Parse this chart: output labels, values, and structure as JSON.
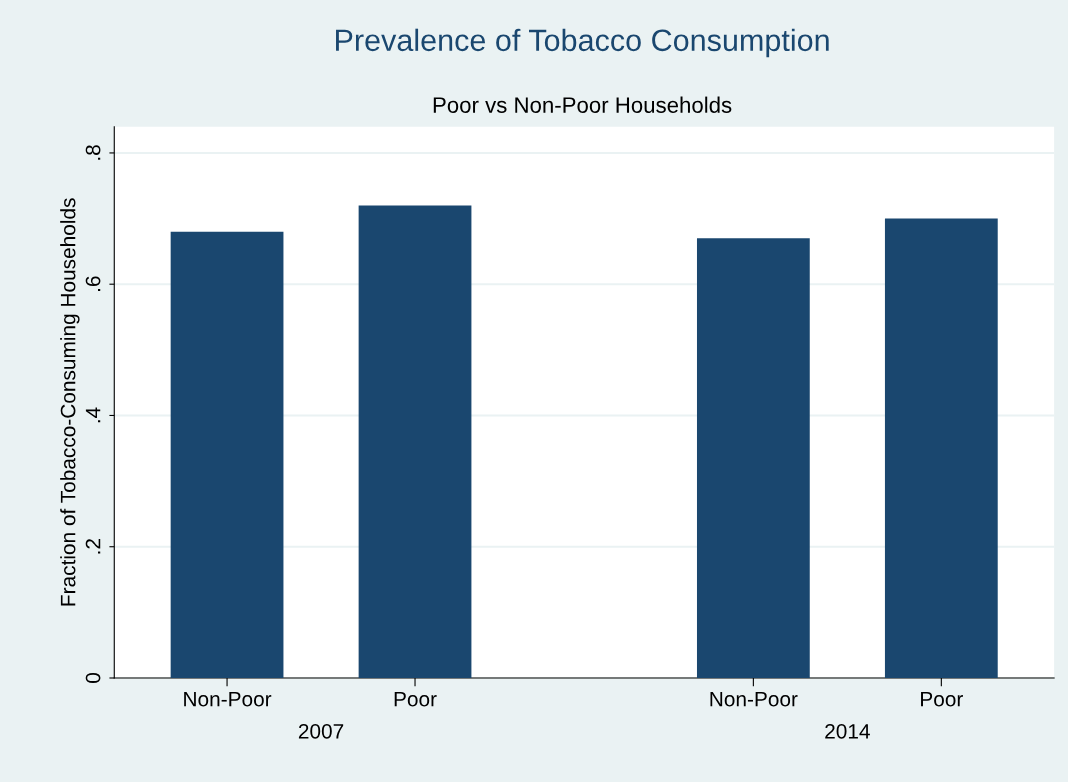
{
  "chart_data": {
    "type": "bar",
    "title": "Prevalence of Tobacco Consumption",
    "subtitle": "Poor vs Non-Poor Households",
    "ylabel": "Fraction of Tobacco-Consuming Households",
    "categories": [
      "Non-Poor",
      "Poor",
      "Non-Poor",
      "Poor"
    ],
    "values": [
      0.68,
      0.72,
      0.67,
      0.7
    ],
    "color": "#1a476f",
    "ylim": [
      0,
      0.84
    ],
    "yticks": [
      {
        "value": 0,
        "label": "0"
      },
      {
        "value": 0.2,
        "label": ".2"
      },
      {
        "value": 0.4,
        "label": ".4"
      },
      {
        "value": 0.6,
        "label": ".6"
      },
      {
        "value": 0.8,
        "label": ".8"
      }
    ],
    "grid": "y",
    "legend": false,
    "annotations": [
      "2007",
      "2014"
    ]
  }
}
